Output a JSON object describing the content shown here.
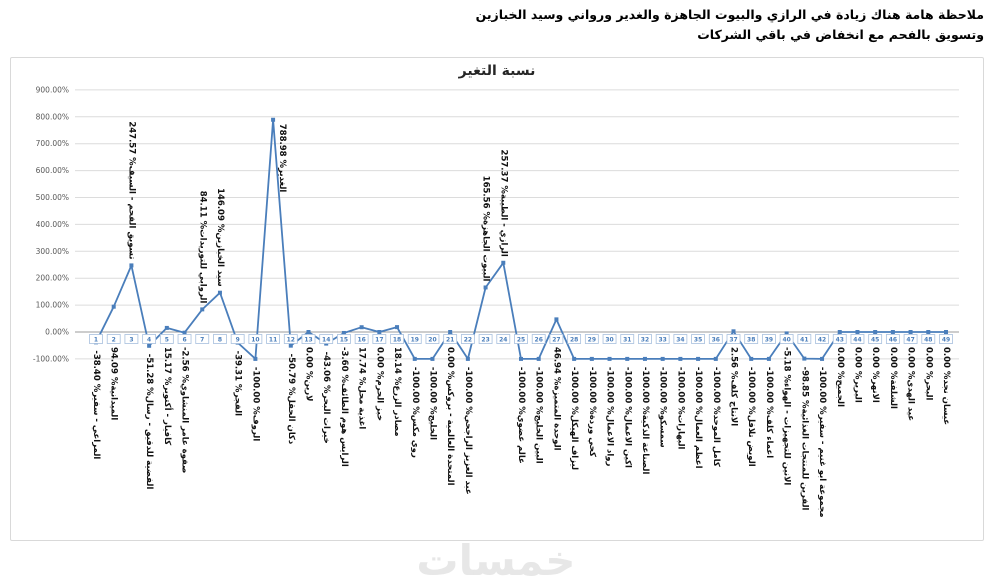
{
  "note": "ملاحظة هامة هناك زيادة في الرازي والبيوت الجاهزة والغدير ورواني وسيد الخبازين وتسويق بالفحم مع انخفاض في  باقي الشركات",
  "watermark": "خمسات",
  "chart_data": {
    "type": "line",
    "title": "نسبة التغير",
    "series_name": "نسبة التغير",
    "series_color": "#4a7ebb",
    "grid": true,
    "legend": "none",
    "ylim": [
      -100,
      900
    ],
    "ytick_step": 100,
    "ytick_suffix": "%",
    "xlabel": "",
    "ylabel": "",
    "points": [
      {
        "n": 1,
        "name": "المراعي - سفير",
        "value": -38.4,
        "label": "below"
      },
      {
        "n": 2,
        "name": "الميدانية",
        "value": 94.09,
        "label": "below"
      },
      {
        "n": 3,
        "name": "تسويق الفحم - السيف",
        "value": 247.57,
        "label": "above"
      },
      {
        "n": 4,
        "name": "الفضية للدقيق - رسال",
        "value": -51.28,
        "label": "below"
      },
      {
        "n": 5,
        "name": "كافيار - أكتوبر",
        "value": 15.17,
        "label": "below"
      },
      {
        "n": 6,
        "name": "صفوة عامر المنشاوي",
        "value": -2.56,
        "label": "below"
      },
      {
        "n": 7,
        "name": "الروابي للتوريدات",
        "value": 84.11,
        "label": "above"
      },
      {
        "n": 8,
        "name": "سيد الخبازين",
        "value": 146.09,
        "label": "above"
      },
      {
        "n": 9,
        "name": "الفجر",
        "value": -39.31,
        "label": "below"
      },
      {
        "n": 10,
        "name": "الروف",
        "value": -100.0,
        "label": "below"
      },
      {
        "n": 11,
        "name": "الغدير",
        "value": 788.98,
        "label": "right"
      },
      {
        "n": 12,
        "name": "دكان الحقل",
        "value": -50.79,
        "label": "below"
      },
      {
        "n": 13,
        "name": "لارين",
        "value": 0.0,
        "label": "below"
      },
      {
        "n": 14,
        "name": "خيرات البحر",
        "value": -43.06,
        "label": "below"
      },
      {
        "n": 15,
        "name": "الرايس هوم الطائف",
        "value": -3.6,
        "label": "below"
      },
      {
        "n": 16,
        "name": "اغذية محل",
        "value": 17.74,
        "label": "below"
      },
      {
        "n": 17,
        "name": "خبز الحرم",
        "value": 0.0,
        "label": "below"
      },
      {
        "n": 18,
        "name": "مصادر الزرع",
        "value": 18.14,
        "label": "below"
      },
      {
        "n": 19,
        "name": "روي مكس",
        "value": -100.0,
        "label": "below"
      },
      {
        "n": 20,
        "name": "الخليج",
        "value": -100.0,
        "label": "below"
      },
      {
        "n": 21,
        "name": "المتحدة العالمية - بروكس",
        "value": 0.0,
        "label": "below"
      },
      {
        "n": 22,
        "name": "عبد العزيز الراجحي",
        "value": -100.0,
        "label": "below"
      },
      {
        "n": 23,
        "name": "البيوت الجاهزة",
        "value": 165.56,
        "label": "above"
      },
      {
        "n": 24,
        "name": "الرازي - الطيبة",
        "value": 257.37,
        "label": "above"
      },
      {
        "n": 25,
        "name": "عالم عضوي",
        "value": -100.0,
        "label": "below"
      },
      {
        "n": 26,
        "name": "البين الخليج",
        "value": -100.0,
        "label": "below"
      },
      {
        "n": 27,
        "name": "الوحدة المتميزة",
        "value": 46.94,
        "label": "below"
      },
      {
        "n": 28,
        "name": "ليزاف الهيكل",
        "value": -100.0,
        "label": "below"
      },
      {
        "n": 29,
        "name": "كحي وردة",
        "value": -100.0,
        "label": "below"
      },
      {
        "n": 30,
        "name": "رواد الاعمال",
        "value": -100.0,
        "label": "below"
      },
      {
        "n": 31,
        "name": "اكين الاعمال",
        "value": -100.0,
        "label": "below"
      },
      {
        "n": 32,
        "name": "الصناعة الذكية",
        "value": -100.0,
        "label": "below"
      },
      {
        "n": 33,
        "name": "سمسكو",
        "value": -100.0,
        "label": "below"
      },
      {
        "n": 34,
        "name": "البهارات",
        "value": -100.0,
        "label": "below"
      },
      {
        "n": 35,
        "name": "اعظم العمال",
        "value": -100.0,
        "label": "below"
      },
      {
        "n": 36,
        "name": "كامل الموحد",
        "value": -100.0,
        "label": "below"
      },
      {
        "n": 37,
        "name": "الانتاج كلف",
        "value": 2.56,
        "label": "below"
      },
      {
        "n": 38,
        "name": "الويض تلافل",
        "value": -100.0,
        "label": "below"
      },
      {
        "n": 39,
        "name": "اعماء كلف",
        "value": -100.0,
        "label": "below"
      },
      {
        "n": 40,
        "name": "الانين للتجهيزات - الهواء",
        "value": -5.18,
        "label": "below"
      },
      {
        "n": 41,
        "name": "الفرين للمنتجات الغذائية",
        "value": -98.85,
        "label": "below"
      },
      {
        "n": 42,
        "name": "مجموعة ابو غنيم - سفير",
        "value": -100.0,
        "label": "below"
      },
      {
        "n": 43,
        "name": "الجميح",
        "value": 0.0,
        "label": "below"
      },
      {
        "n": 44,
        "name": "البرير",
        "value": 0.0,
        "label": "below"
      },
      {
        "n": 45,
        "name": "الانهر",
        "value": 0.0,
        "label": "below"
      },
      {
        "n": 46,
        "name": "الشلفة",
        "value": 0.0,
        "label": "below"
      },
      {
        "n": 47,
        "name": "عيد الهدى",
        "value": 0.0,
        "label": "below"
      },
      {
        "n": 48,
        "name": "البحر",
        "value": 0.0,
        "label": "below"
      },
      {
        "n": 49,
        "name": "عيسان نجد",
        "value": 0.0,
        "label": "below"
      }
    ]
  }
}
